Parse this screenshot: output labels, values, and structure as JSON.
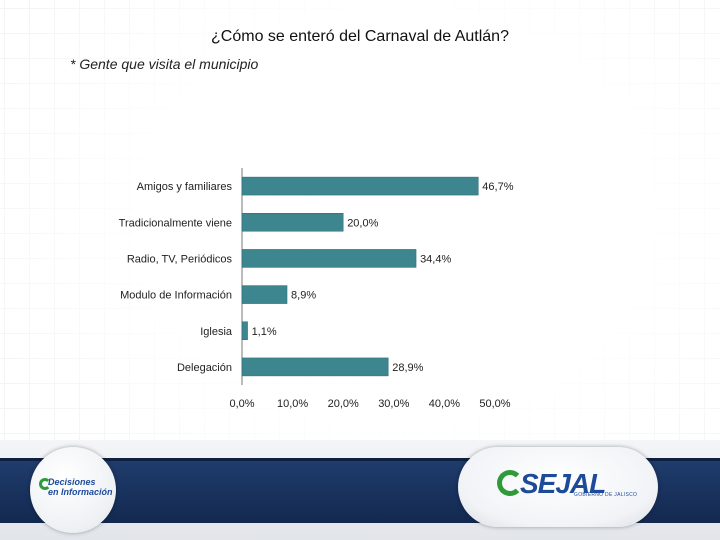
{
  "page": {
    "title": "¿Cómo se enteró del Carnaval de Autlán?",
    "subtitle": "* Gente que visita el municipio"
  },
  "chart_data": {
    "type": "bar",
    "orientation": "horizontal",
    "title": "",
    "xlabel": "",
    "ylabel": "",
    "categories": [
      "Amigos y familiares",
      "Tradicionalmente viene",
      "Radio, TV, Periódicos",
      "Modulo de Información",
      "Iglesia",
      "Delegación"
    ],
    "values": [
      46.7,
      20.0,
      34.4,
      8.9,
      1.1,
      28.9
    ],
    "value_labels": [
      "46,7%",
      "20,0%",
      "34,4%",
      "8,9%",
      "1,1%",
      "28,9%"
    ],
    "xlim": [
      0,
      50
    ],
    "ticks": [
      0,
      10,
      20,
      30,
      40,
      50
    ],
    "tick_labels": [
      "0,0%",
      "10,0%",
      "20,0%",
      "30,0%",
      "40,0%",
      "50,0%"
    ],
    "bar_color": "#3d858f",
    "grid": false,
    "legend": "none"
  },
  "footer": {
    "left_logo_line1": "Decisiones",
    "left_logo_line2": "en Información",
    "right_logo_main": "SEJAL",
    "right_logo_sub": "GOBIERNO DE JALISCO"
  }
}
